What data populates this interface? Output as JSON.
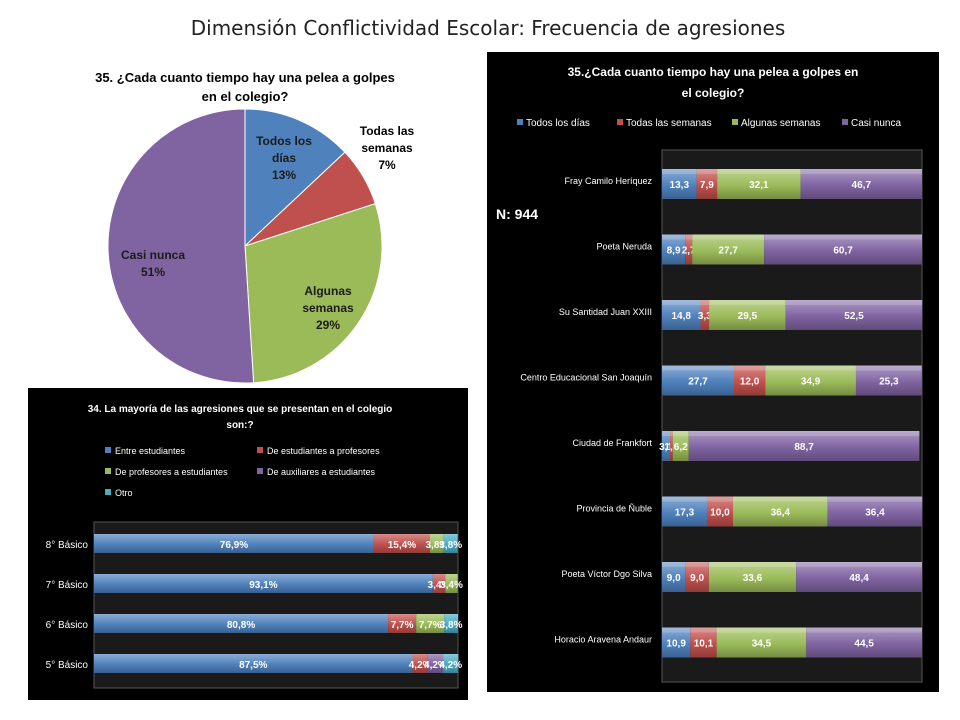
{
  "slide_title": "Dimensión Conflictividad Escolar: Frecuencia de agresiones",
  "n_label": "N: 944",
  "colors": {
    "blue": "#4f81bd",
    "red": "#c0504d",
    "green": "#9bbb59",
    "purple": "#8064a2",
    "cyan": "#4bacc6"
  },
  "chart_data": [
    {
      "type": "pie",
      "title": "35. ¿Cada cuanto tiempo hay una pelea a golpes en el colegio?",
      "slices": [
        {
          "label": "Todos los días",
          "value": 13,
          "display": "13%",
          "color": "#4f81bd"
        },
        {
          "label": "Todas las semanas",
          "value": 7,
          "display": "7%",
          "color": "#c0504d"
        },
        {
          "label": "Algunas semanas",
          "value": 29,
          "display": "29%",
          "color": "#9bbb59"
        },
        {
          "label": "Casi nunca",
          "value": 51,
          "display": "51%",
          "color": "#8064a2"
        }
      ]
    },
    {
      "type": "bar",
      "orientation": "horizontal",
      "stacked": true,
      "title": "34. La mayoría de las agresiones que se presentan en el colegio son:?",
      "legend_placement": "top",
      "categories": [
        "8° Básico",
        "7° Básico",
        "6° Básico",
        "5° Básico"
      ],
      "series": [
        {
          "name": "Entre estudiantes",
          "color": "#4f81bd",
          "values": [
            76.9,
            93.1,
            80.8,
            87.5
          ],
          "labels": [
            "76,9%",
            "93,1%",
            "80,8%",
            "87,5%"
          ]
        },
        {
          "name": "De estudiantes a profesores",
          "color": "#c0504d",
          "values": [
            15.4,
            3.4,
            7.7,
            4.2
          ],
          "labels": [
            "15,4%",
            "3,4%",
            "7,7%",
            "4,2%"
          ]
        },
        {
          "name": "De profesores a estudiantes",
          "color": "#9bbb59",
          "values": [
            3.8,
            3.4,
            7.7,
            0
          ],
          "labels": [
            "3,8%",
            "3,4%",
            "7,7%",
            ""
          ]
        },
        {
          "name": "De auxiliares a estudiantes",
          "color": "#8064a2",
          "values": [
            0,
            0,
            0,
            4.2
          ],
          "labels": [
            "",
            "",
            "",
            "4,2%"
          ]
        },
        {
          "name": "Otro",
          "color": "#4bacc6",
          "values": [
            3.8,
            0,
            3.8,
            4.2
          ],
          "labels": [
            "3,8%",
            "",
            "3,8%",
            "4,2%"
          ]
        }
      ],
      "xlim": [
        0,
        100
      ]
    },
    {
      "type": "bar",
      "orientation": "horizontal",
      "stacked": true,
      "title": "35.¿Cada cuanto tiempo hay una pelea a golpes en el colegio?",
      "legend_placement": "top",
      "categories": [
        "Fray Camilo Heríquez",
        "Poeta Neruda",
        "Su Santidad Juan XXIII",
        "Centro Educacional San Joaquín",
        "Ciudad de Frankfort",
        "Provincia de Ñuble",
        "Poeta Víctor Dgo Silva",
        "Horacio Aravena Andaur"
      ],
      "series": [
        {
          "name": "Todos los días",
          "color": "#4f81bd",
          "values": [
            13.3,
            8.9,
            14.8,
            27.7,
            3.1,
            17.3,
            9.0,
            10.9
          ],
          "labels": [
            "13,3",
            "8,9",
            "14,8",
            "27,7",
            "3,1",
            "17,3",
            "9,0",
            "10,9"
          ]
        },
        {
          "name": "Todas las semanas",
          "color": "#c0504d",
          "values": [
            7.9,
            2.7,
            3.3,
            12.0,
            1.0,
            10.0,
            9.0,
            10.1
          ],
          "labels": [
            "7,9",
            "2,7",
            "3,3",
            "12,0",
            "1,0",
            "10,0",
            "9,0",
            "10,1"
          ]
        },
        {
          "name": "Algunas semanas",
          "color": "#9bbb59",
          "values": [
            32.1,
            27.7,
            29.5,
            34.9,
            6.2,
            36.4,
            33.6,
            34.5
          ],
          "labels": [
            "32,1",
            "27,7",
            "29,5",
            "34,9",
            "6,2",
            "36,4",
            "33,6",
            "34,5"
          ]
        },
        {
          "name": "Casi nunca",
          "color": "#8064a2",
          "values": [
            46.7,
            60.7,
            52.5,
            25.3,
            88.7,
            36.4,
            48.4,
            44.5
          ],
          "labels": [
            "46,7",
            "60,7",
            "52,5",
            "25,3",
            "88,7",
            "36,4",
            "48,4",
            "44,5"
          ]
        }
      ],
      "xlim": [
        0,
        100
      ]
    }
  ]
}
